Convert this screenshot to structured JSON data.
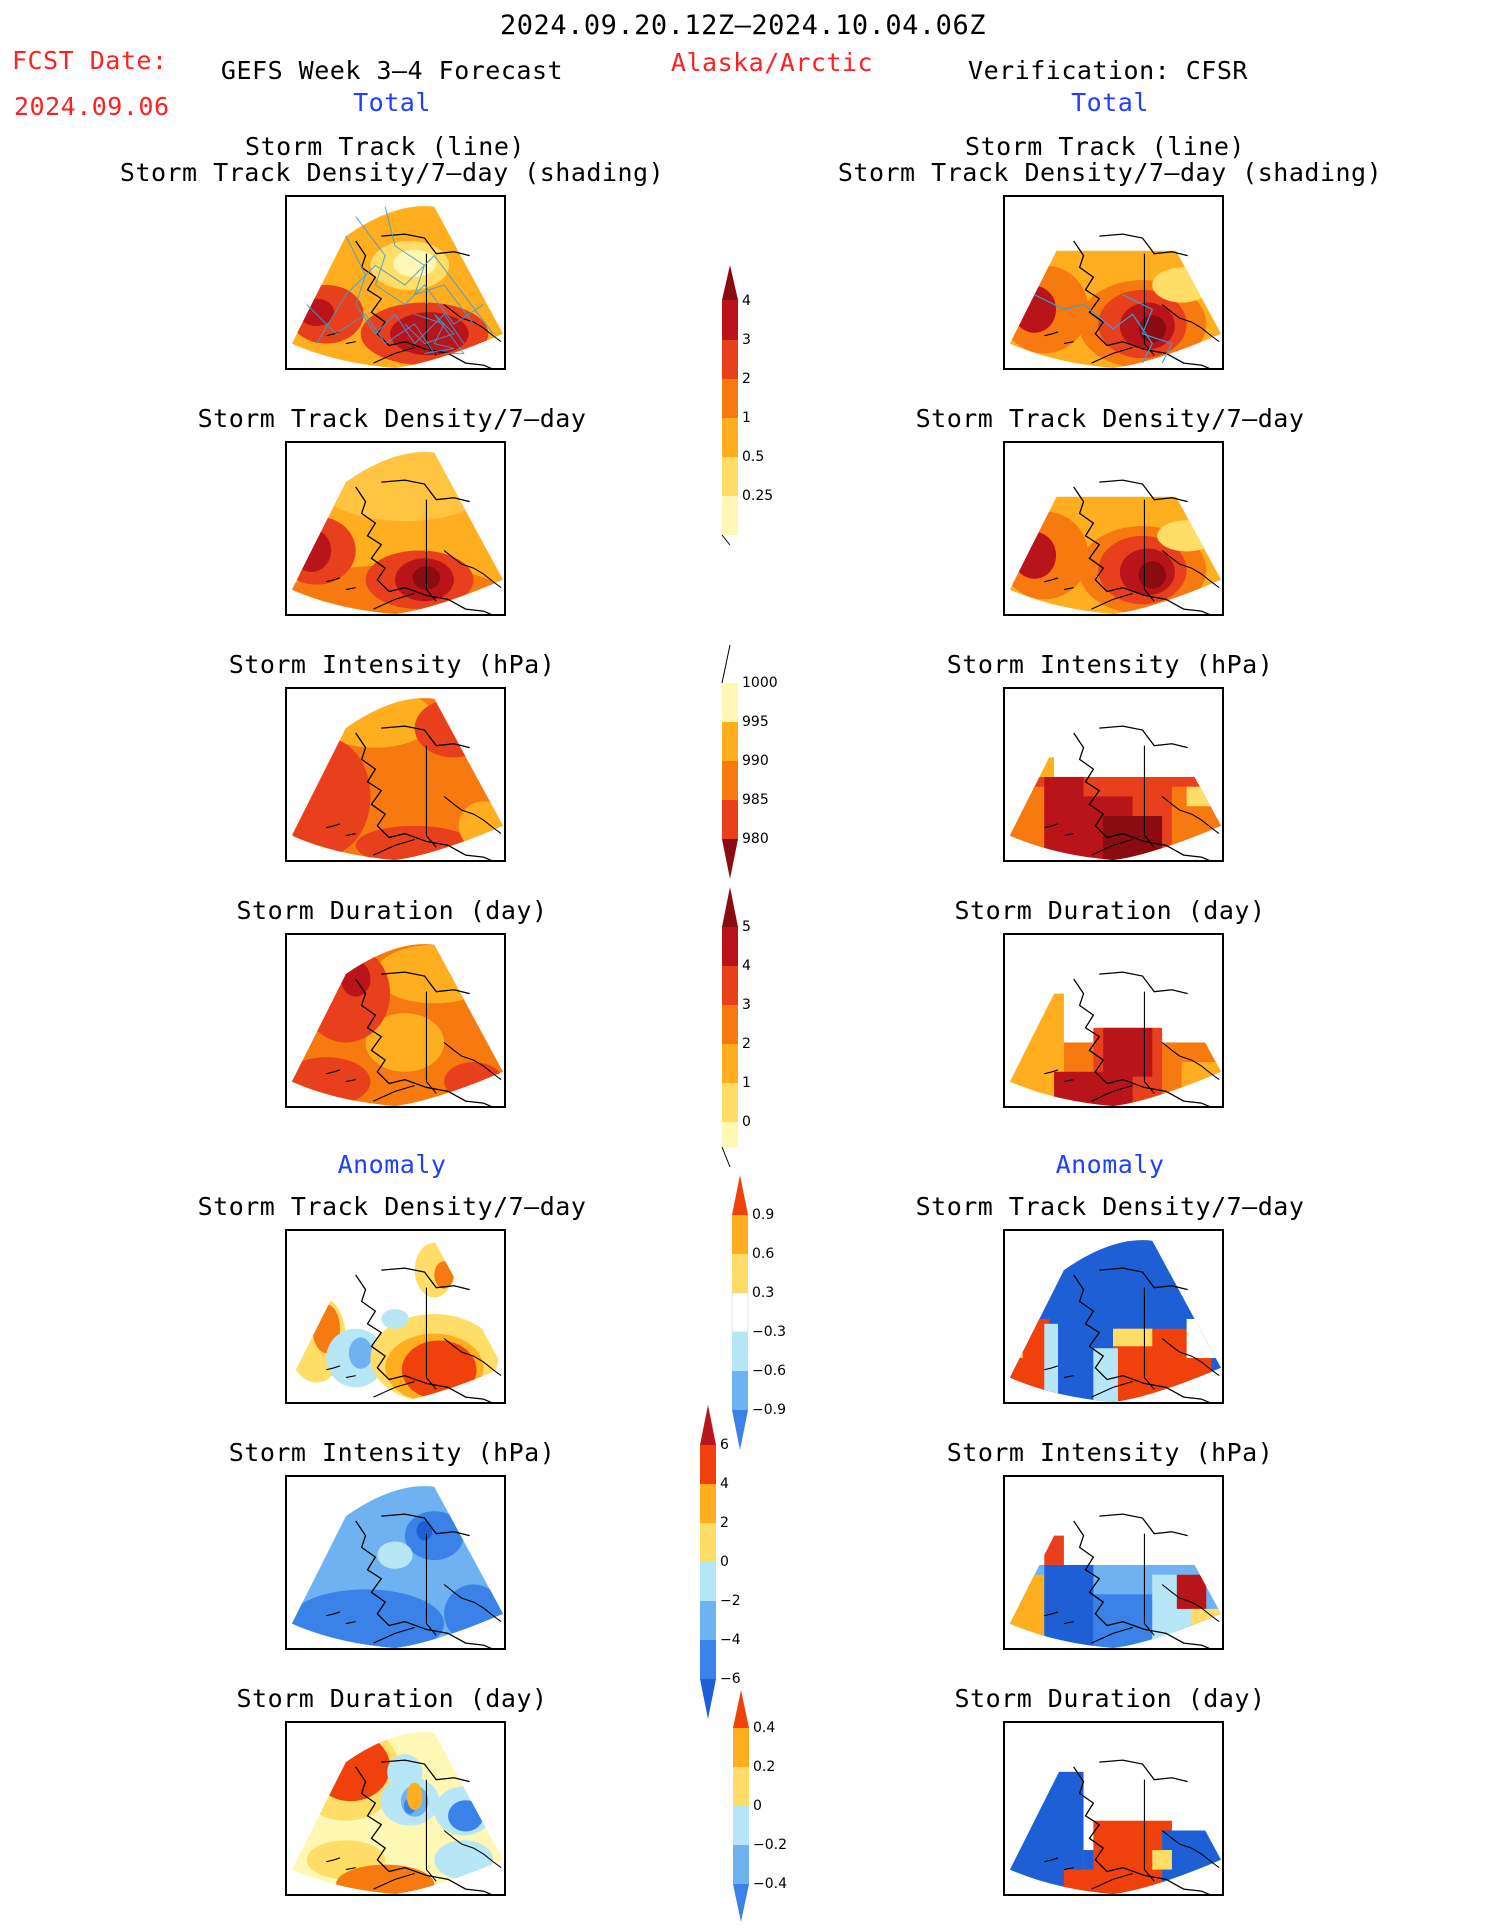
{
  "header": {
    "date_range": "2024.09.20.12Z–2024.10.04.06Z",
    "fcst_label": "FCST Date:",
    "fcst_date": "2024.09.06",
    "left_title": "GEFS Week 3–4 Forecast",
    "region": "Alaska/Arctic",
    "right_title": "Verification: CFSR"
  },
  "sections": {
    "total": "Total",
    "anomaly": "Anomaly"
  },
  "panels": {
    "track_line": "Storm Track (line)",
    "track_shading": "Storm Track Density/7–day (shading)",
    "density": "Storm Track Density/7–day",
    "intensity": "Storm Intensity (hPa)",
    "duration": "Storm Duration (day)"
  },
  "colorbars": {
    "density_total": [
      "4",
      "3",
      "2",
      "1",
      "0.5",
      "0.25"
    ],
    "intensity_total": [
      "1000",
      "995",
      "990",
      "985",
      "980"
    ],
    "duration_total": [
      "5",
      "4",
      "3",
      "2",
      "1",
      "0"
    ],
    "density_anom": [
      "0.9",
      "0.6",
      "0.3",
      "−0.3",
      "−0.6",
      "−0.9"
    ],
    "intensity_anom": [
      "6",
      "4",
      "2",
      "0",
      "−2",
      "−4",
      "−6"
    ],
    "duration_anom": [
      "0.4",
      "0.2",
      "0",
      "−0.2",
      "−0.4"
    ]
  },
  "colors": {
    "warm": [
      "#fff7b4",
      "#ffdd66",
      "#ffae20",
      "#f77a10",
      "#e8401c",
      "#b8141a",
      "#8a0c10"
    ],
    "cool": [
      "#1f5fd6",
      "#3b82e8",
      "#6fb2f2",
      "#b7e6f7"
    ],
    "title_red": "#ff2020",
    "title_blue": "#1f3fff"
  }
}
